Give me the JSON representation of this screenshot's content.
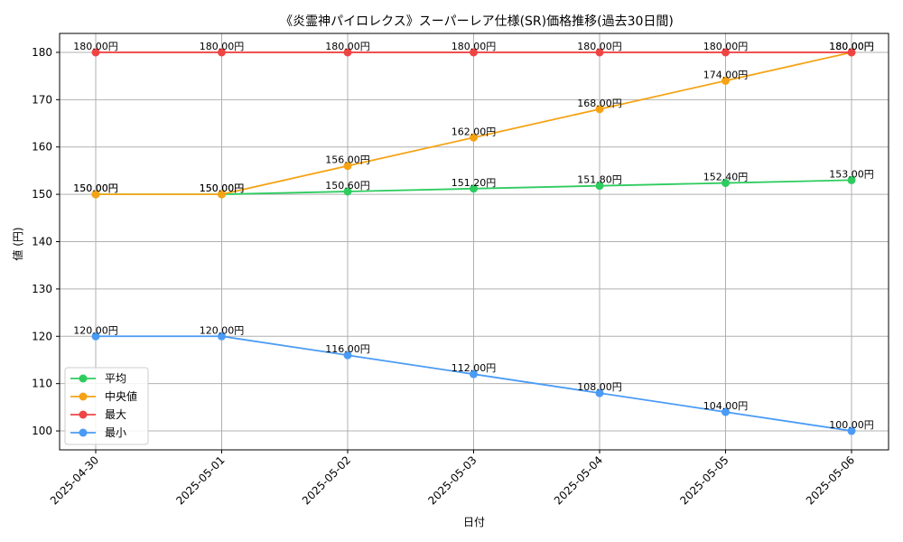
{
  "chart_data": {
    "type": "line",
    "title": "《炎霊神パイロレクス》スーパーレア仕様(SR)価格推移(過去30日間)",
    "xlabel": "日付",
    "ylabel": "値 (円)",
    "categories": [
      "2025-04-30",
      "2025-05-01",
      "2025-05-02",
      "2025-05-03",
      "2025-05-04",
      "2025-05-05",
      "2025-05-06"
    ],
    "ylim": [
      96,
      184
    ],
    "yticks": [
      100,
      110,
      120,
      130,
      140,
      150,
      160,
      170,
      180
    ],
    "grid": true,
    "legend_position": "lower-left",
    "label_suffix": "円",
    "series": [
      {
        "name": "平均",
        "color": "#2ecc5f",
        "values": [
          150.0,
          150.0,
          150.6,
          151.2,
          151.8,
          152.4,
          153.0
        ]
      },
      {
        "name": "中央値",
        "color": "#f5a315",
        "values": [
          150.0,
          150.0,
          156.0,
          162.0,
          168.0,
          174.0,
          180.0
        ]
      },
      {
        "name": "最大",
        "color": "#ef4444",
        "values": [
          180.0,
          180.0,
          180.0,
          180.0,
          180.0,
          180.0,
          180.0
        ]
      },
      {
        "name": "最小",
        "color": "#4a9bf5",
        "values": [
          120.0,
          120.0,
          116.0,
          112.0,
          108.0,
          104.0,
          100.0
        ]
      }
    ]
  }
}
